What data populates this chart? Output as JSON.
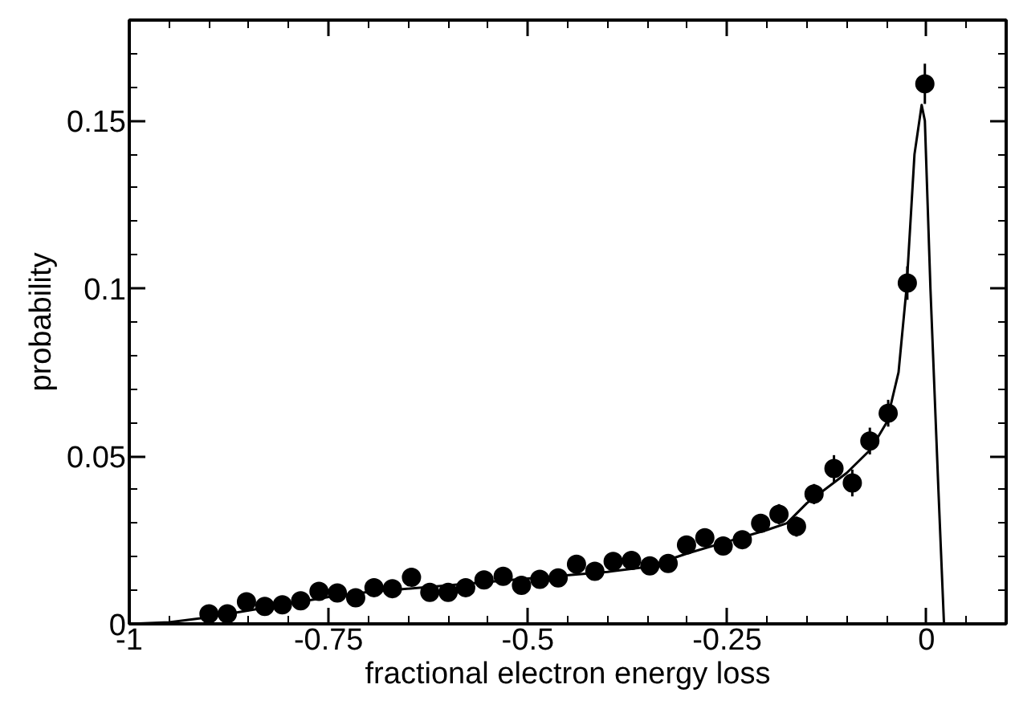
{
  "chart_data": {
    "type": "scatter",
    "xlabel": "fractional electron energy loss",
    "ylabel": "probability",
    "xlim": [
      -1,
      0.1
    ],
    "ylim": [
      0,
      0.18
    ],
    "xticks": [
      -1,
      {
        "value": -0.95,
        "label": null
      },
      {
        "value": -0.9,
        "label": null
      },
      {
        "value": -0.85,
        "label": null
      },
      {
        "value": -0.8,
        "label": null
      },
      -0.75,
      {
        "value": -0.7,
        "label": null
      },
      {
        "value": -0.65,
        "label": null
      },
      {
        "value": -0.6,
        "label": null
      },
      {
        "value": -0.55,
        "label": null
      },
      -0.5,
      {
        "value": -0.45,
        "label": null
      },
      {
        "value": -0.4,
        "label": null
      },
      {
        "value": -0.35,
        "label": null
      },
      {
        "value": -0.3,
        "label": null
      },
      -0.25,
      {
        "value": -0.2,
        "label": null
      },
      {
        "value": -0.15,
        "label": null
      },
      {
        "value": -0.1,
        "label": null
      },
      {
        "value": -0.05,
        "label": null
      },
      0,
      {
        "value": 0.05,
        "label": null
      }
    ],
    "yticks": [
      0,
      {
        "value": 0.01,
        "label": null
      },
      {
        "value": 0.02,
        "label": null
      },
      {
        "value": 0.03,
        "label": null
      },
      {
        "value": 0.04,
        "label": null
      },
      0.05,
      {
        "value": 0.06,
        "label": null
      },
      {
        "value": 0.07,
        "label": null
      },
      {
        "value": 0.08,
        "label": null
      },
      {
        "value": 0.09,
        "label": null
      },
      0.1,
      {
        "value": 0.11,
        "label": null
      },
      {
        "value": 0.12,
        "label": null
      },
      {
        "value": 0.13,
        "label": null
      },
      {
        "value": 0.14,
        "label": null
      },
      0.15,
      {
        "value": 0.16,
        "label": null
      },
      {
        "value": 0.17,
        "label": null
      }
    ],
    "series": [
      {
        "color": "#000000",
        "marker": "circle",
        "x": [
          -0.9,
          -0.877,
          -0.853,
          -0.83,
          -0.808,
          -0.785,
          -0.762,
          -0.739,
          -0.716,
          -0.693,
          -0.67,
          -0.646,
          -0.623,
          -0.6,
          -0.578,
          -0.555,
          -0.531,
          -0.508,
          -0.485,
          -0.462,
          -0.439,
          -0.416,
          -0.393,
          -0.37,
          -0.347,
          -0.324,
          -0.301,
          -0.278,
          -0.255,
          -0.231,
          -0.208,
          -0.185,
          -0.163,
          -0.141,
          -0.116,
          -0.093,
          -0.071,
          -0.048,
          -0.024,
          -0.002
        ],
        "values": [
          0.003,
          0.003,
          0.0066,
          0.0052,
          0.0057,
          0.0069,
          0.0097,
          0.0092,
          0.0078,
          0.0108,
          0.0105,
          0.0139,
          0.0094,
          0.0094,
          0.0108,
          0.0131,
          0.0142,
          0.0115,
          0.0133,
          0.0137,
          0.0178,
          0.0157,
          0.0186,
          0.0189,
          0.0173,
          0.018,
          0.0235,
          0.0257,
          0.0232,
          0.0251,
          0.03,
          0.0327,
          0.029,
          0.0387,
          0.0463,
          0.042,
          0.0545,
          0.0628,
          0.1016,
          0.161
        ],
        "errors": [
          0.001,
          0.001,
          0.0015,
          0.0015,
          0.0015,
          0.0015,
          0.0015,
          0.0015,
          0.0015,
          0.0015,
          0.0015,
          0.0015,
          0.0015,
          0.0015,
          0.0015,
          0.0015,
          0.0015,
          0.0015,
          0.0015,
          0.0015,
          0.002,
          0.002,
          0.002,
          0.002,
          0.002,
          0.002,
          0.002,
          0.002,
          0.002,
          0.002,
          0.002,
          0.003,
          0.003,
          0.003,
          0.004,
          0.004,
          0.004,
          0.004,
          0.005,
          0.006
        ]
      },
      {
        "type": "line",
        "color": "#000000",
        "line_style": "solid",
        "x": [
          -1,
          -0.95,
          -0.9,
          -0.85,
          -0.8,
          -0.75,
          -0.7,
          -0.6,
          -0.5,
          -0.4,
          -0.35,
          -0.3,
          -0.25,
          -0.2,
          -0.175,
          -0.15,
          -0.1,
          -0.07,
          -0.05,
          -0.035,
          -0.025,
          -0.015,
          -0.006,
          -0.002,
          0.005,
          0.015,
          0.022,
          0.03
        ],
        "values": [
          0,
          0.0005,
          0.002,
          0.004,
          0.006,
          0.008,
          0.0095,
          0.0115,
          0.0135,
          0.0155,
          0.017,
          0.021,
          0.0245,
          0.028,
          0.03,
          0.036,
          0.045,
          0.052,
          0.06,
          0.075,
          0.1,
          0.14,
          0.1547,
          0.15,
          0.1,
          0.04,
          0,
          0
        ]
      }
    ]
  }
}
